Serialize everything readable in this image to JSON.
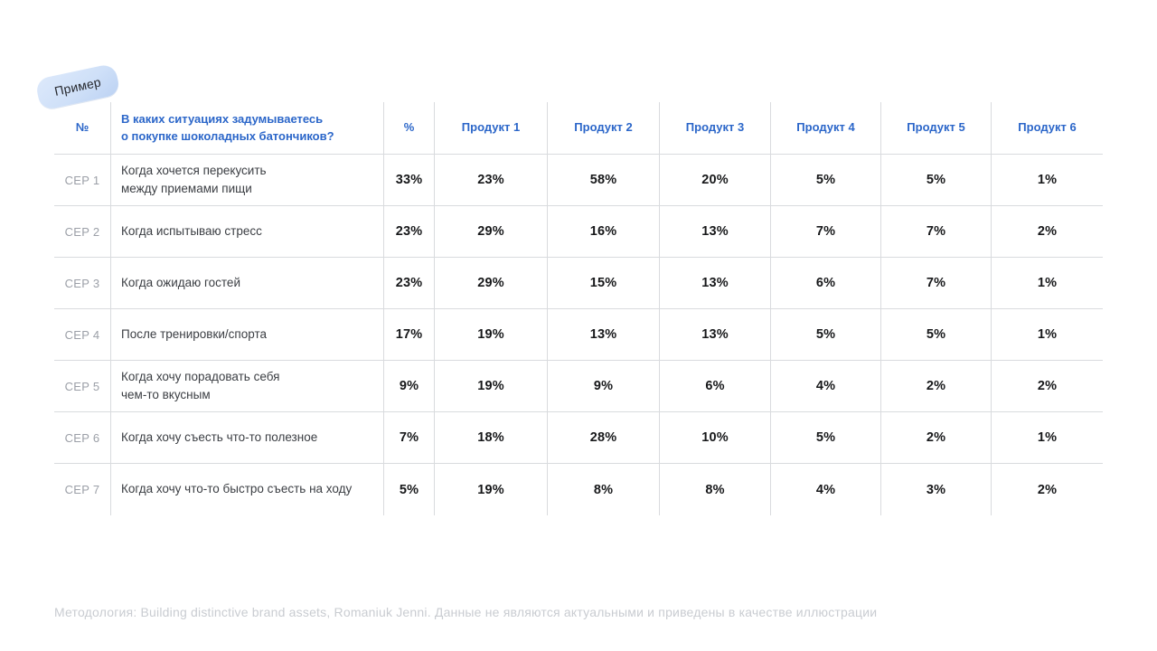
{
  "badge": {
    "label": "Пример"
  },
  "table": {
    "headers": {
      "number": "№",
      "question": "В каких ситуациях задумываетесь\nо покупке шоколадных батончиков?",
      "percent": "%",
      "products": [
        "Продукт 1",
        "Продукт 2",
        "Продукт 3",
        "Продукт 4",
        "Продукт 5",
        "Продукт 6"
      ]
    },
    "rows": [
      {
        "cep": "CEP 1",
        "situation": "Когда хочется перекусить\nмежду приемами пищи",
        "total": "33%",
        "values": [
          "23%",
          "58%",
          "20%",
          "5%",
          "5%",
          "1%"
        ]
      },
      {
        "cep": "CEP 2",
        "situation": "Когда испытываю стресс",
        "total": "23%",
        "values": [
          "29%",
          "16%",
          "13%",
          "7%",
          "7%",
          "2%"
        ]
      },
      {
        "cep": "CEP 3",
        "situation": "Когда ожидаю гостей",
        "total": "23%",
        "values": [
          "29%",
          "15%",
          "13%",
          "6%",
          "7%",
          "1%"
        ]
      },
      {
        "cep": "CEP 4",
        "situation": "После тренировки/спорта",
        "total": "17%",
        "values": [
          "19%",
          "13%",
          "13%",
          "5%",
          "5%",
          "1%"
        ]
      },
      {
        "cep": "CEP 5",
        "situation": "Когда хочу порадовать себя\nчем-то вкусным",
        "total": "9%",
        "values": [
          "19%",
          "9%",
          "6%",
          "4%",
          "2%",
          "2%"
        ]
      },
      {
        "cep": "CEP 6",
        "situation": "Когда хочу съесть что-то полезное",
        "total": "7%",
        "values": [
          "18%",
          "28%",
          "10%",
          "5%",
          "2%",
          "1%"
        ]
      },
      {
        "cep": "CEP 7",
        "situation": "Когда хочу что-то быстро съесть на ходу",
        "total": "5%",
        "values": [
          "19%",
          "8%",
          "8%",
          "4%",
          "3%",
          "2%"
        ]
      }
    ]
  },
  "footnote": "Методология: Building distinctive brand assets, Romaniuk Jenni. Данные не являются актуальными и приведены в качестве иллюстрации",
  "colors": {
    "header_blue": "#2b66c9",
    "badge_bg": "#cfe0f8",
    "grid_line": "#d9dbde",
    "cep_gray": "#9b9fa7",
    "body_text": "#3b3e43",
    "value_text": "#17181a",
    "footnote_gray": "#c9ccd1"
  }
}
